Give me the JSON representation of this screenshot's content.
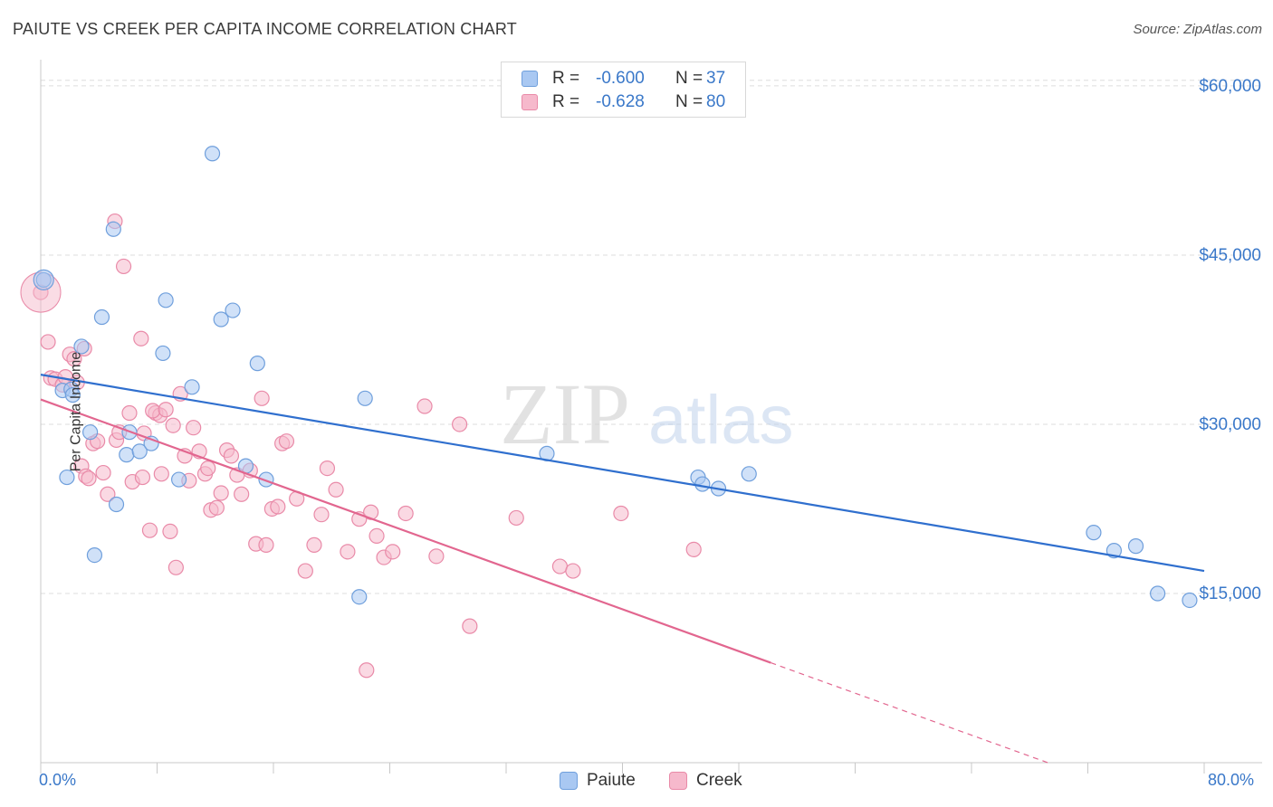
{
  "title": "PAIUTE VS CREEK PER CAPITA INCOME CORRELATION CHART",
  "source": "Source: ZipAtlas.com",
  "watermark": {
    "zip": "ZIP",
    "atlas": "atlas"
  },
  "colors": {
    "paiute_fill": "#a9c8f2",
    "paiute_stroke": "#6f9fdc",
    "paiute_line": "#2f6fce",
    "creek_fill": "#f6b9cc",
    "creek_stroke": "#e98aa8",
    "creek_line": "#e2668f",
    "axis_text": "#3a78c9",
    "grid": "#dddddd"
  },
  "legend": {
    "rows": [
      {
        "r_label": "R =",
        "r_value": "-0.600",
        "n_label": "N =",
        "n_value": "37"
      },
      {
        "r_label": "R =",
        "r_value": "-0.628",
        "n_label": "N =",
        "n_value": "80"
      }
    ]
  },
  "chart_data": {
    "type": "scatter",
    "xlabel": "",
    "ylabel": "Per Capita Income",
    "xlim": [
      0,
      80
    ],
    "ylim": [
      0,
      62000
    ],
    "x_tick_labels": [
      "0.0%",
      "80.0%"
    ],
    "y_ticks": [
      15000,
      30000,
      45000,
      60000
    ],
    "y_tick_labels": [
      "$15,000",
      "$30,000",
      "$45,000",
      "$60,000"
    ],
    "grid": true,
    "legend_position": "bottom",
    "series": [
      {
        "name": "Paiute",
        "r": -0.6,
        "n": 37,
        "trend": {
          "x": [
            0,
            80
          ],
          "y": [
            34400,
            17000
          ],
          "dashed_after": null
        },
        "points": [
          [
            0.2,
            42800
          ],
          [
            1.5,
            33000
          ],
          [
            1.8,
            25300
          ],
          [
            2.1,
            33100
          ],
          [
            2.2,
            32600
          ],
          [
            2.8,
            36900
          ],
          [
            3.4,
            29300
          ],
          [
            3.7,
            18400
          ],
          [
            4.2,
            39500
          ],
          [
            5.0,
            47300
          ],
          [
            5.2,
            22900
          ],
          [
            5.9,
            27300
          ],
          [
            6.1,
            29300
          ],
          [
            6.8,
            27600
          ],
          [
            7.6,
            28300
          ],
          [
            8.4,
            36300
          ],
          [
            8.6,
            41000
          ],
          [
            9.5,
            25100
          ],
          [
            10.4,
            33300
          ],
          [
            11.8,
            54000
          ],
          [
            12.4,
            39300
          ],
          [
            13.2,
            40100
          ],
          [
            14.1,
            26300
          ],
          [
            14.9,
            35400
          ],
          [
            15.5,
            25100
          ],
          [
            21.9,
            14700
          ],
          [
            22.3,
            32300
          ],
          [
            34.8,
            27400
          ],
          [
            45.2,
            25300
          ],
          [
            45.5,
            24700
          ],
          [
            46.6,
            24300
          ],
          [
            48.7,
            25600
          ],
          [
            72.4,
            20400
          ],
          [
            73.8,
            18800
          ],
          [
            75.3,
            19200
          ],
          [
            76.8,
            15000
          ],
          [
            79.0,
            14400
          ]
        ]
      },
      {
        "name": "Creek",
        "r": -0.628,
        "n": 80,
        "trend": {
          "x": [
            0,
            80
          ],
          "y": [
            32200,
            -5000
          ],
          "solid_until_x": 50.2
        },
        "points": [
          [
            0.0,
            41700
          ],
          [
            0.5,
            37300
          ],
          [
            0.7,
            34100
          ],
          [
            1.0,
            34000
          ],
          [
            1.5,
            33500
          ],
          [
            1.7,
            34200
          ],
          [
            2.0,
            36200
          ],
          [
            2.3,
            35800
          ],
          [
            2.5,
            33700
          ],
          [
            2.8,
            26300
          ],
          [
            3.1,
            25400
          ],
          [
            3.0,
            36700
          ],
          [
            3.6,
            28300
          ],
          [
            3.9,
            28500
          ],
          [
            3.3,
            25200
          ],
          [
            4.3,
            25700
          ],
          [
            4.6,
            23800
          ],
          [
            5.1,
            48000
          ],
          [
            5.2,
            28600
          ],
          [
            5.7,
            44000
          ],
          [
            5.4,
            29300
          ],
          [
            6.1,
            31000
          ],
          [
            6.3,
            24900
          ],
          [
            6.9,
            37600
          ],
          [
            7.1,
            29200
          ],
          [
            7.5,
            20600
          ],
          [
            7.0,
            25300
          ],
          [
            7.9,
            31000
          ],
          [
            8.2,
            30800
          ],
          [
            7.7,
            31200
          ],
          [
            8.3,
            25600
          ],
          [
            8.6,
            31300
          ],
          [
            8.9,
            20500
          ],
          [
            9.3,
            17300
          ],
          [
            9.1,
            29900
          ],
          [
            9.6,
            32700
          ],
          [
            9.9,
            27200
          ],
          [
            10.2,
            25000
          ],
          [
            10.5,
            29700
          ],
          [
            10.9,
            27600
          ],
          [
            11.3,
            25600
          ],
          [
            11.5,
            26100
          ],
          [
            11.7,
            22400
          ],
          [
            12.1,
            22600
          ],
          [
            12.4,
            23900
          ],
          [
            12.8,
            27700
          ],
          [
            13.1,
            27200
          ],
          [
            13.5,
            25500
          ],
          [
            13.8,
            23800
          ],
          [
            14.4,
            25900
          ],
          [
            14.8,
            19400
          ],
          [
            15.2,
            32300
          ],
          [
            15.5,
            19300
          ],
          [
            15.9,
            22500
          ],
          [
            16.3,
            22700
          ],
          [
            16.6,
            28300
          ],
          [
            16.9,
            28500
          ],
          [
            17.6,
            23400
          ],
          [
            18.2,
            17000
          ],
          [
            18.8,
            19300
          ],
          [
            19.3,
            22000
          ],
          [
            19.7,
            26100
          ],
          [
            20.3,
            24200
          ],
          [
            21.1,
            18700
          ],
          [
            21.9,
            21600
          ],
          [
            22.4,
            8200
          ],
          [
            22.7,
            22200
          ],
          [
            23.1,
            20100
          ],
          [
            23.6,
            18200
          ],
          [
            24.2,
            18700
          ],
          [
            25.1,
            22100
          ],
          [
            26.4,
            31600
          ],
          [
            27.2,
            18300
          ],
          [
            28.8,
            30000
          ],
          [
            29.5,
            12100
          ],
          [
            32.7,
            21700
          ],
          [
            35.7,
            17400
          ],
          [
            36.6,
            17000
          ],
          [
            39.9,
            22100
          ],
          [
            44.9,
            18900
          ]
        ]
      }
    ]
  }
}
